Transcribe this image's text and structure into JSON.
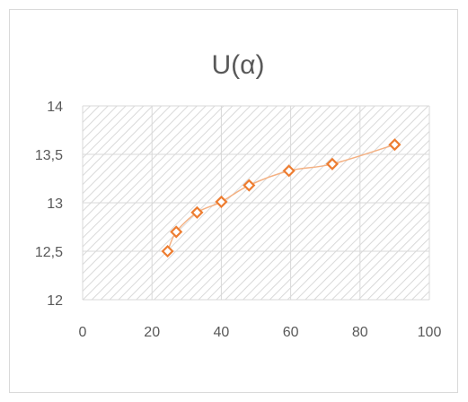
{
  "chart_data": {
    "type": "scatter",
    "title": "U(α)",
    "xlabel": "",
    "ylabel": "",
    "xlim": [
      0,
      100
    ],
    "ylim": [
      12,
      14
    ],
    "xticks": [
      0,
      20,
      40,
      60,
      80,
      100
    ],
    "yticks": [
      12,
      12.5,
      13,
      13.5,
      14
    ],
    "xtick_labels": [
      "0",
      "20",
      "40",
      "60",
      "80",
      "100"
    ],
    "ytick_labels": [
      "12",
      "12,5",
      "13",
      "13,5",
      "14"
    ],
    "grid": true,
    "legend": "none",
    "series": [
      {
        "x": [
          24.5,
          27,
          33,
          40,
          48,
          59.5,
          72,
          90
        ],
        "y": [
          12.5,
          12.7,
          12.9,
          13.01,
          13.18,
          13.33,
          13.4,
          13.6
        ],
        "marker": "diamond-open",
        "line": "smoothed",
        "marker_color": "#ed7d31",
        "line_color": "#f4b183"
      }
    ],
    "plot_fill": "diagonal-hatch",
    "hatch_color": "#d9d9d9"
  }
}
